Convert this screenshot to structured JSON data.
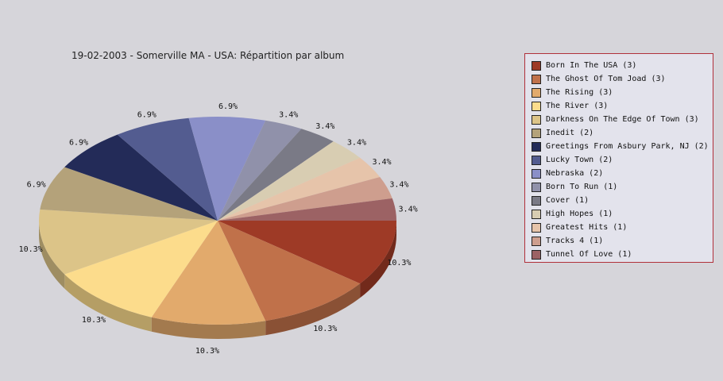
{
  "chart_data": {
    "type": "pie",
    "title": "19-02-2003 - Somerville MA - USA:  Répartition par album",
    "categories": [
      "Born In The USA (3)",
      "The Ghost Of Tom Joad (3)",
      "The Rising (3)",
      "The River (3)",
      "Darkness On The Edge Of Town (3)",
      "Inedit (2)",
      "Greetings From Asbury Park, NJ (2)",
      "Lucky Town (2)",
      "Nebraska (2)",
      "Born To Run (1)",
      "Cover (1)",
      "High Hopes (1)",
      "Greatest Hits (1)",
      "Tracks 4 (1)",
      "Tunnel Of Love (1)"
    ],
    "values": [
      3,
      3,
      3,
      3,
      3,
      2,
      2,
      2,
      2,
      1,
      1,
      1,
      1,
      1,
      1
    ],
    "labels": [
      "10.3%",
      "10.3%",
      "10.3%",
      "10.3%",
      "10.3%",
      "6.9%",
      "6.9%",
      "6.9%",
      "6.9%",
      "3.4%",
      "3.4%",
      "3.4%",
      "3.4%",
      "3.4%",
      "3.4%"
    ],
    "colors": [
      "#9e3a26",
      "#c0714a",
      "#e2aa6c",
      "#fcdc8c",
      "#dcc488",
      "#b4a27a",
      "#232b58",
      "#535c90",
      "#8a8fc8",
      "#9091aa",
      "#7a7a86",
      "#d8cdb2",
      "#e6c4aa",
      "#ce9e8e",
      "#9c6264"
    ],
    "legend_position": "right",
    "three_d": true
  }
}
